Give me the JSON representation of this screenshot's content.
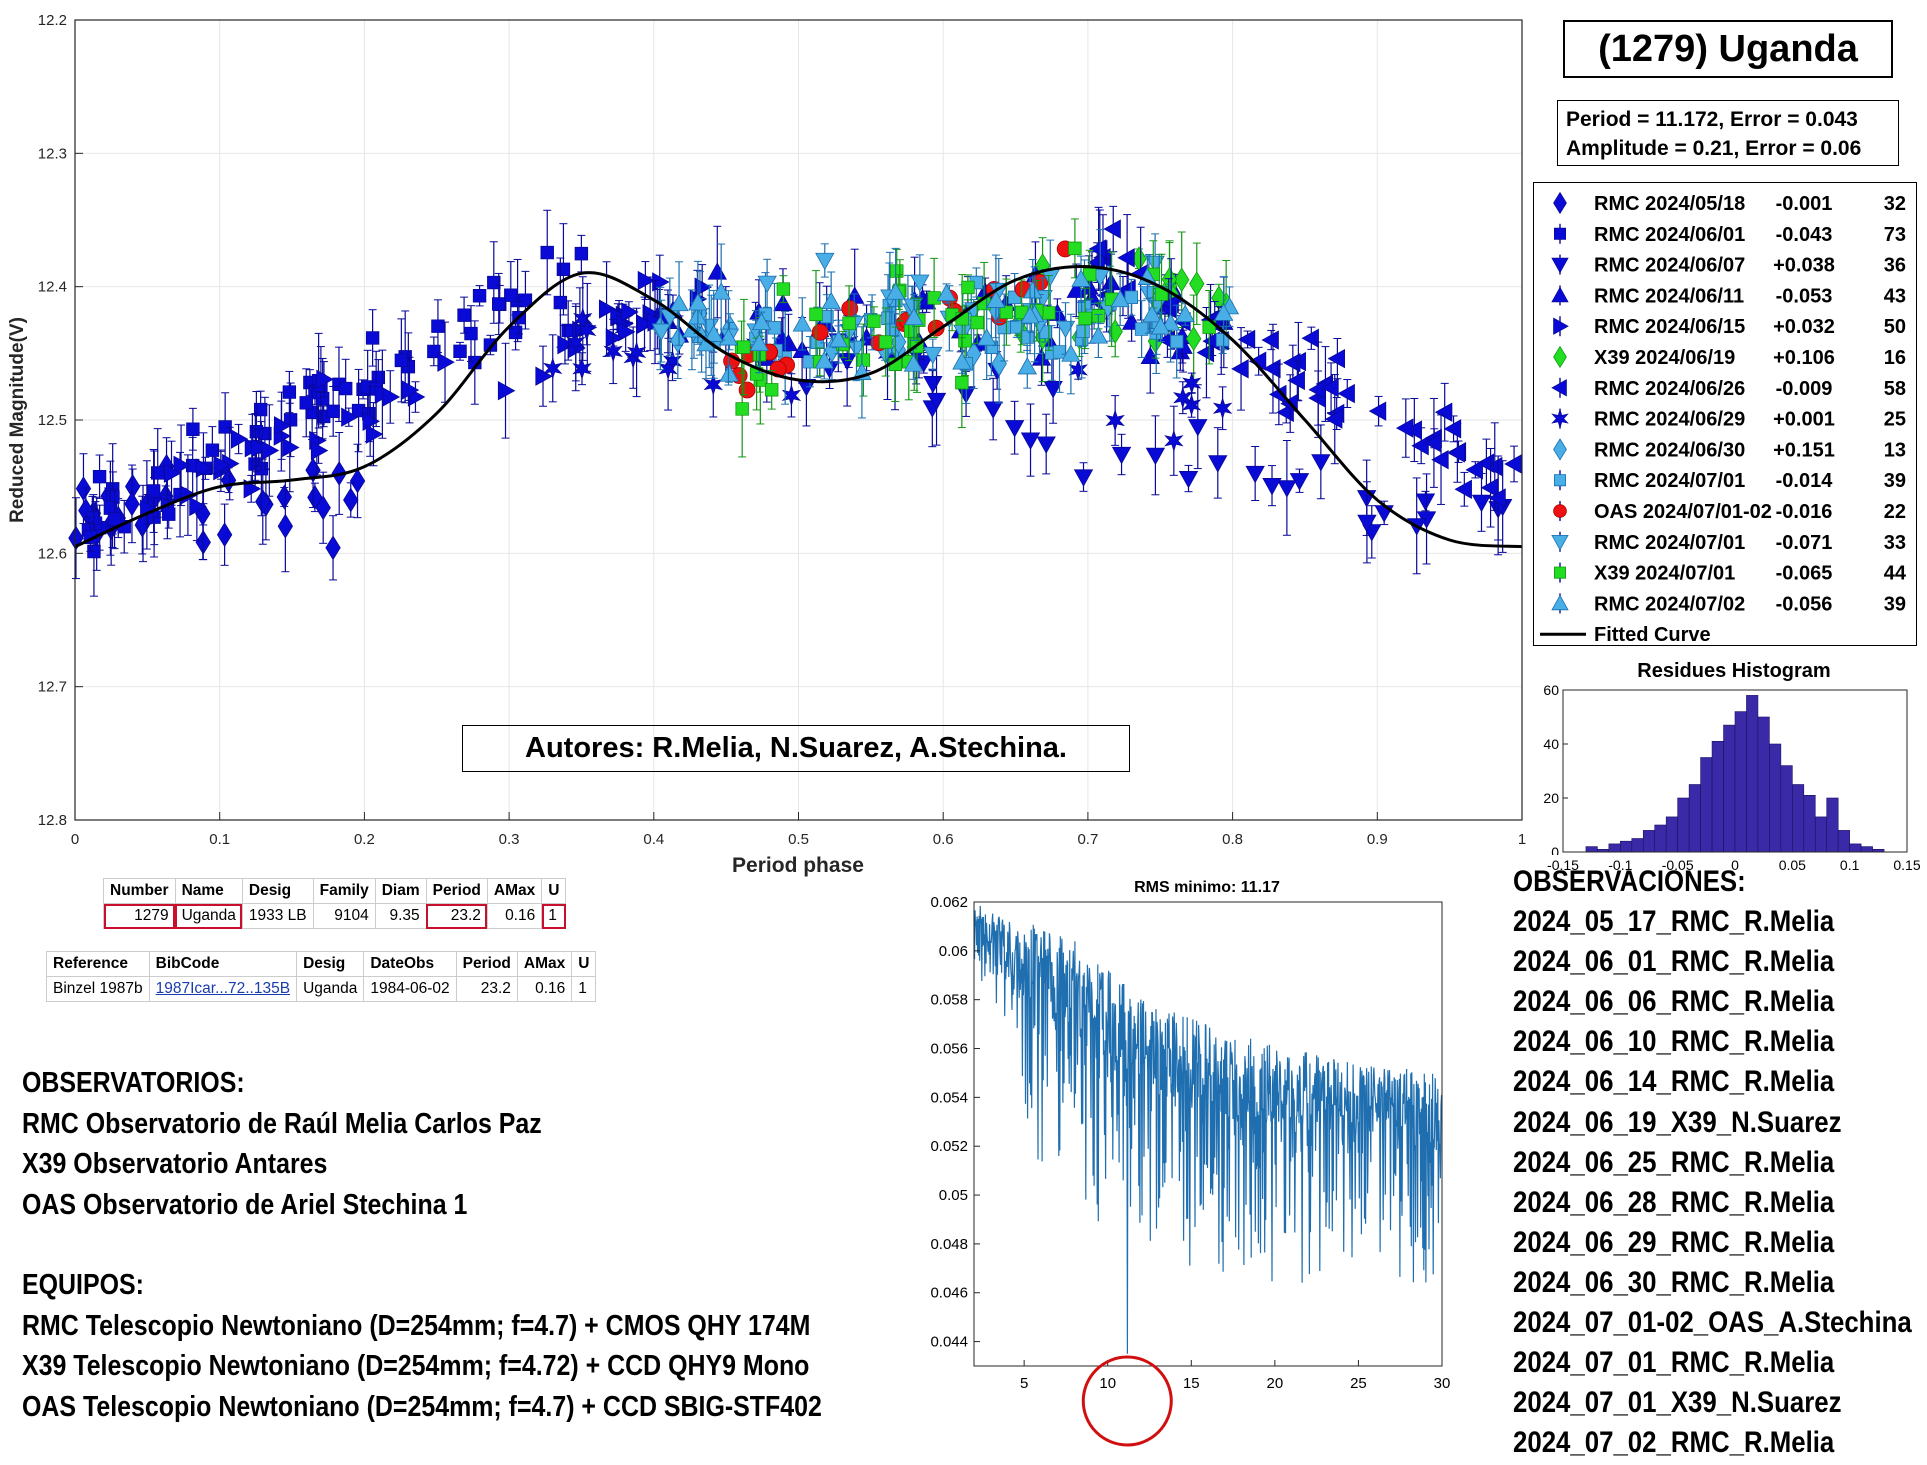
{
  "title": "(1279) Uganda",
  "fit": {
    "period_line": "Period =  11.172, Error = 0.043",
    "amplitude_line": "Amplitude = 0.21, Error = 0.06"
  },
  "authors": "Autores: R.Melia, N.Suarez, A.Stechina.",
  "colors": {
    "blue": "#0a0ad6",
    "light_blue": "#4aaee6",
    "green": "#22dd22",
    "red": "#ee1111",
    "purple_marker": "#a040c0",
    "olive_marker": "#6a7d3a",
    "hist_fill": "#3a2aa8",
    "rms_line": "#1f6fb0",
    "highlight_red": "#c8102e"
  },
  "chart_data": [
    {
      "type": "scatter",
      "name": "lightcurve",
      "xlabel": "Period phase",
      "ylabel": "Reduced Magnitude(V)",
      "xlim": [
        0,
        1
      ],
      "ylim": [
        12.2,
        12.8
      ],
      "y_reversed": true,
      "xticks": [
        "0",
        "0.1",
        "0.2",
        "0.3",
        "0.4",
        "0.5",
        "0.6",
        "0.7",
        "0.8",
        "0.9",
        "1"
      ],
      "yticks": [
        "12.2",
        "12.3",
        "12.4",
        "12.5",
        "12.6",
        "12.7",
        "12.8"
      ],
      "fitted_curve": {
        "name": "Fitted Curve",
        "x": [
          0,
          0.05,
          0.1,
          0.15,
          0.2,
          0.25,
          0.3,
          0.35,
          0.4,
          0.45,
          0.5,
          0.55,
          0.6,
          0.65,
          0.7,
          0.75,
          0.8,
          0.85,
          0.9,
          0.95,
          1
        ],
        "y": [
          12.595,
          12.57,
          12.55,
          12.545,
          12.535,
          12.495,
          12.43,
          12.39,
          12.41,
          12.45,
          12.47,
          12.465,
          12.43,
          12.395,
          12.385,
          12.4,
          12.44,
          12.5,
          12.56,
          12.59,
          12.595
        ]
      },
      "series": [
        {
          "name": "RMC 2024/05/18",
          "offset": "-0.001",
          "n": "32",
          "marker": "diamond",
          "color": "blue",
          "x_range": [
            0.0,
            0.2
          ],
          "y_center": [
            12.575,
            12.555
          ],
          "spread": 0.05
        },
        {
          "name": "RMC 2024/06/01",
          "offset": "-0.043",
          "n": "73",
          "marker": "square",
          "color": "blue",
          "x_range": [
            0.0,
            0.35
          ],
          "y_center": [
            12.585,
            12.39
          ],
          "spread": 0.05
        },
        {
          "name": "RMC 2024/06/07",
          "offset": "+0.038",
          "n": "36",
          "marker": "triangle-down",
          "color": "blue",
          "x_range": [
            0.5,
            1.0
          ],
          "y_center": [
            12.45,
            12.6
          ],
          "spread": 0.05
        },
        {
          "name": "RMC 2024/06/11",
          "offset": "-0.053",
          "n": "43",
          "marker": "triangle-up",
          "color": "blue",
          "x_range": [
            0.4,
            0.8
          ],
          "y_center": [
            12.42,
            12.43
          ],
          "spread": 0.05
        },
        {
          "name": "RMC 2024/06/15",
          "offset": "+0.032",
          "n": "50",
          "marker": "triangle-right",
          "color": "blue",
          "x_range": [
            0.05,
            0.45
          ],
          "y_center": [
            12.55,
            12.4
          ],
          "spread": 0.04
        },
        {
          "name": "X39 2024/06/19",
          "offset": "+0.106",
          "n": "16",
          "marker": "diamond",
          "color": "green",
          "x_range": [
            0.65,
            0.8
          ],
          "y_center": [
            12.42,
            12.4
          ],
          "spread": 0.06
        },
        {
          "name": "RMC 2024/06/26",
          "offset": "-0.009",
          "n": "58",
          "marker": "triangle-left",
          "color": "blue",
          "x_range": [
            0.7,
            1.0
          ],
          "y_center": [
            12.38,
            12.56
          ],
          "spread": 0.05
        },
        {
          "name": "RMC 2024/06/29",
          "offset": "+0.001",
          "n": "25",
          "marker": "star",
          "color": "blue",
          "x_range": [
            0.25,
            0.9
          ],
          "y_center": [
            12.44,
            12.5
          ],
          "spread": 0.04
        },
        {
          "name": "RMC 2024/06/30",
          "offset": "+0.151",
          "n": "13",
          "marker": "diamond",
          "color": "light_blue",
          "x_range": [
            0.4,
            0.65
          ],
          "y_center": [
            12.43,
            12.45
          ],
          "spread": 0.05
        },
        {
          "name": "RMC 2024/07/01",
          "offset": "-0.014",
          "n": "39",
          "marker": "square",
          "color": "light_blue",
          "x_range": [
            0.4,
            0.8
          ],
          "y_center": [
            12.44,
            12.42
          ],
          "spread": 0.05
        },
        {
          "name": "OAS 2024/07/01-02",
          "offset": "-0.016",
          "n": "22",
          "marker": "circle",
          "color": "red",
          "x_range": [
            0.45,
            0.7
          ],
          "y_center": [
            12.46,
            12.39
          ],
          "spread": 0.03
        },
        {
          "name": "RMC 2024/07/01",
          "offset": "-0.071",
          "n": "33",
          "marker": "triangle-down",
          "color": "light_blue",
          "x_range": [
            0.4,
            0.75
          ],
          "y_center": [
            12.43,
            12.4
          ],
          "spread": 0.05
        },
        {
          "name": "X39 2024/07/01",
          "offset": "-0.065",
          "n": "44",
          "marker": "square",
          "color": "green",
          "x_range": [
            0.45,
            0.8
          ],
          "y_center": [
            12.46,
            12.38
          ],
          "spread": 0.07
        },
        {
          "name": "RMC 2024/07/02",
          "offset": "-0.056",
          "n": "39",
          "marker": "triangle-up",
          "color": "light_blue",
          "x_range": [
            0.4,
            0.8
          ],
          "y_center": [
            12.44,
            12.42
          ],
          "spread": 0.05
        }
      ],
      "legend_fitted_label": "Fitted Curve",
      "legend_position": "right-outside"
    },
    {
      "type": "bar",
      "name": "residues-histogram",
      "title": "Residues Histogram",
      "xlim": [
        -0.15,
        0.15
      ],
      "ylim": [
        0,
        60
      ],
      "xticks": [
        "-0.15",
        "-0.1",
        "-0.05",
        "0",
        "0.05",
        "0.1",
        "0.15"
      ],
      "yticks": [
        "0",
        "20",
        "40",
        "60"
      ],
      "bin_edges_start": -0.13,
      "bin_width": 0.01,
      "counts": [
        2,
        1,
        3,
        4,
        5,
        8,
        10,
        13,
        20,
        25,
        35,
        41,
        47,
        52,
        58,
        50,
        40,
        32,
        25,
        21,
        13,
        20,
        8,
        3,
        2,
        1
      ]
    },
    {
      "type": "line",
      "name": "rms-periodogram",
      "title": "RMS minimo: 11.17",
      "xlim": [
        2,
        30
      ],
      "ylim": [
        0.043,
        0.062
      ],
      "xticks": [
        "5",
        "10",
        "15",
        "20",
        "25",
        "30"
      ],
      "yticks": [
        "0.044",
        "0.046",
        "0.048",
        "0.05",
        "0.052",
        "0.054",
        "0.056",
        "0.058",
        "0.06",
        "0.062"
      ],
      "minimum_x": 11.17,
      "minimum_y": 0.0435,
      "envelope_upper": [
        [
          2,
          0.062
        ],
        [
          8,
          0.0605
        ],
        [
          12,
          0.058
        ],
        [
          18,
          0.0565
        ],
        [
          24,
          0.0555
        ],
        [
          30,
          0.055
        ]
      ],
      "envelope_lower": [
        [
          2,
          0.0595
        ],
        [
          5,
          0.052
        ],
        [
          8,
          0.049
        ],
        [
          12,
          0.0475
        ],
        [
          18,
          0.0465
        ],
        [
          24,
          0.0462
        ],
        [
          30,
          0.046
        ]
      ]
    }
  ],
  "lcdb_table": {
    "headers": [
      "Number",
      "Name",
      "Desig",
      "Family",
      "Diam",
      "Period",
      "AMax",
      "U"
    ],
    "row": [
      "1279",
      "Uganda",
      "1933 LB",
      "9104",
      "9.35",
      "23.2",
      "0.16",
      "1"
    ]
  },
  "ref_table": {
    "headers": [
      "Reference",
      "BibCode",
      "Desig",
      "DateObs",
      "Period",
      "AMax",
      "U"
    ],
    "row": [
      "Binzel 1987b",
      "1987Icar...72..135B",
      "Uganda",
      "1984-06-02",
      "23.2",
      "0.16",
      "1"
    ]
  },
  "observatorios": {
    "heading": "OBSERVATORIOS:",
    "lines": [
      "RMC Observatorio de Raúl Melia Carlos Paz",
      "X39 Observatorio Antares",
      "OAS Observatorio de Ariel Stechina 1"
    ]
  },
  "equipos": {
    "heading": "EQUIPOS:",
    "lines": [
      "RMC Telescopio Newtoniano (D=254mm; f=4.7) + CMOS QHY 174M",
      "X39 Telescopio Newtoniano (D=254mm; f=4.72) + CCD QHY9 Mono",
      "OAS Telescopio Newtoniano (D=254mm; f=4.7) + CCD SBIG-STF402"
    ]
  },
  "observaciones": {
    "heading": "OBSERVACIONES:",
    "lines": [
      "2024_05_17_RMC_R.Melia",
      "2024_06_01_RMC_R.Melia",
      "2024_06_06_RMC_R.Melia",
      "2024_06_10_RMC_R.Melia",
      "2024_06_14_RMC_R.Melia",
      "2024_06_19_X39_N.Suarez",
      "2024_06_25_RMC_R.Melia",
      "2024_06_28_RMC_R.Melia",
      "2024_06_29_RMC_R.Melia",
      "2024_06_30_RMC_R.Melia",
      "2024_07_01-02_OAS_A.Stechina",
      "2024_07_01_RMC_R.Melia",
      "2024_07_01_X39_N.Suarez",
      "2024_07_02_RMC_R.Melia"
    ]
  }
}
